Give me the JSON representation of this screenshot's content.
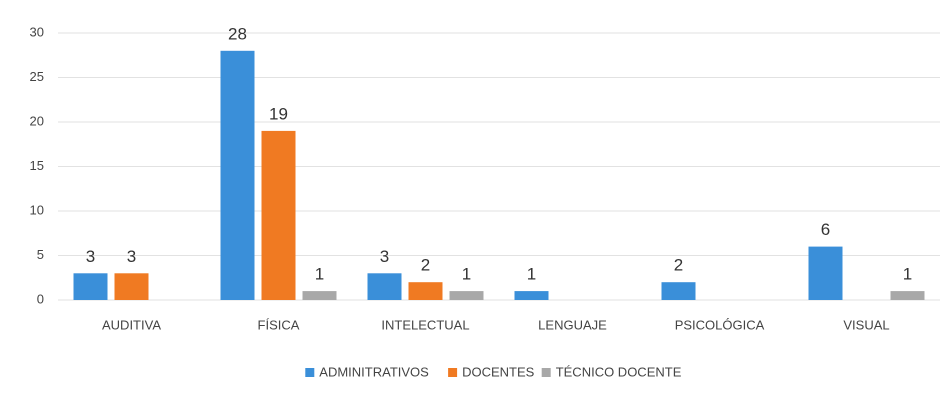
{
  "chart_data": {
    "type": "bar",
    "categories": [
      "AUDITIVA",
      "FÍSICA",
      "INTELECTUAL",
      "LENGUAJE",
      "PSICOLÓGICA",
      "VISUAL"
    ],
    "series": [
      {
        "name": "ADMINITRATIVOS",
        "color": "#3a8fd9",
        "values": [
          3,
          28,
          3,
          1,
          2,
          6
        ]
      },
      {
        "name": "DOCENTES",
        "color": "#f07a22",
        "values": [
          3,
          19,
          2,
          null,
          null,
          null
        ]
      },
      {
        "name": "TÉCNICO DOCENTE",
        "color": "#a8a8a8",
        "values": [
          null,
          1,
          1,
          null,
          null,
          1
        ]
      }
    ],
    "ylim": [
      0,
      30
    ],
    "yticks": [
      0,
      5,
      10,
      15,
      20,
      25,
      30
    ],
    "grid": true,
    "legend": "bottom"
  }
}
